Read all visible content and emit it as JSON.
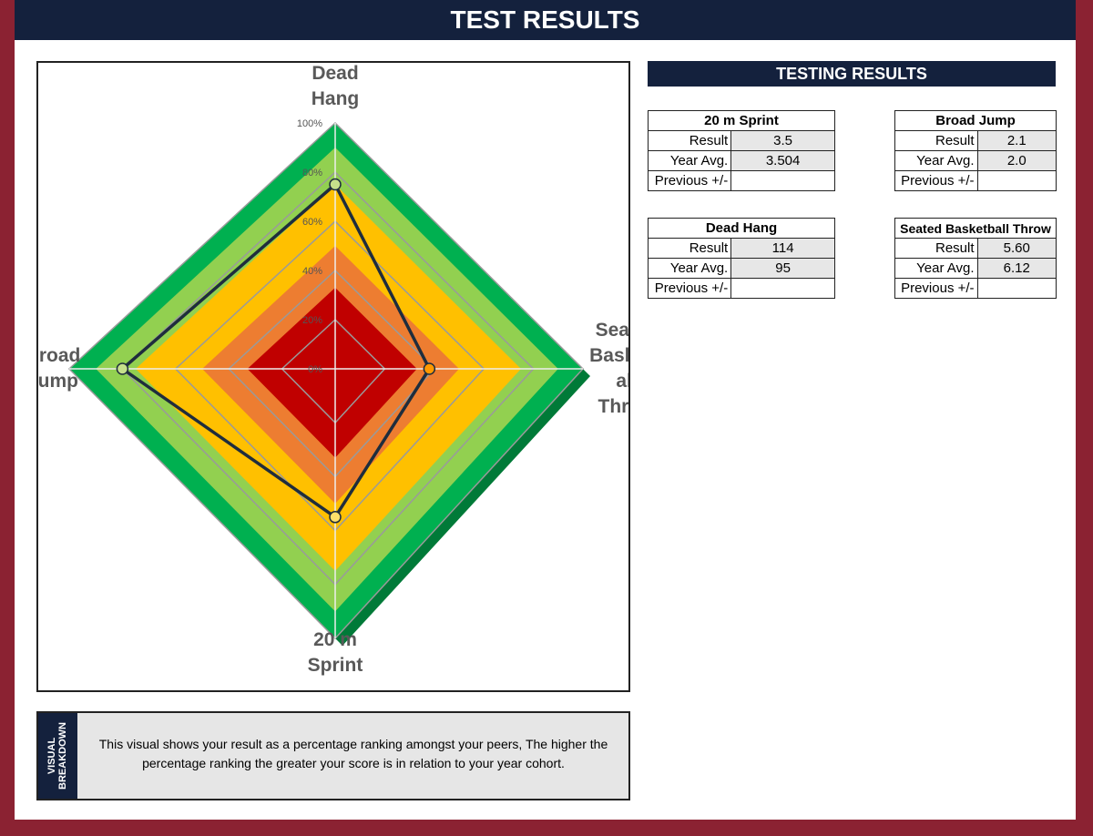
{
  "header": {
    "title": "TEST RESULTS"
  },
  "results_panel": {
    "title": "TESTING RESULTS",
    "tables": [
      {
        "title": "20 m Sprint",
        "rows": [
          {
            "label": "Result",
            "value": "3.5"
          },
          {
            "label": "Year Avg.",
            "value": "3.504"
          },
          {
            "label": "Previous +/-",
            "value": ""
          }
        ]
      },
      {
        "title": "Broad Jump",
        "rows": [
          {
            "label": "Result",
            "value": "2.1"
          },
          {
            "label": "Year Avg.",
            "value": "2.0"
          },
          {
            "label": "Previous +/-",
            "value": ""
          }
        ]
      },
      {
        "title": "Dead Hang",
        "rows": [
          {
            "label": "Result",
            "value": "114"
          },
          {
            "label": "Year Avg.",
            "value": "95"
          },
          {
            "label": "Previous +/-",
            "value": ""
          }
        ]
      },
      {
        "title": "Seated Basketball Throw",
        "rows": [
          {
            "label": "Result",
            "value": "5.60"
          },
          {
            "label": "Year Avg.",
            "value": "6.12"
          },
          {
            "label": "Previous +/-",
            "value": ""
          }
        ]
      }
    ]
  },
  "breakdown": {
    "side_label_line1": "VISUAL",
    "side_label_line2": "BREAKDOWN",
    "text": "This visual shows your result as a percentage ranking amongst your peers, The higher the percentage ranking the greater your score is in relation to your year cohort."
  },
  "chart_data": {
    "type": "radar",
    "categories": [
      "Dead Hang",
      "Seated Basketball Throw",
      "20 m Sprint",
      "Broad Jump"
    ],
    "category_label_lines": [
      [
        "Dead",
        "Hang"
      ],
      [
        "Seated",
        "Basketb",
        "all",
        "Throw"
      ],
      [
        "20 m",
        "Sprint"
      ],
      [
        "Broad",
        "Jump"
      ]
    ],
    "rlim": [
      0,
      100
    ],
    "tick_values": [
      0,
      20,
      40,
      60,
      80,
      100
    ],
    "tick_labels": [
      "0%",
      "20%",
      "40%",
      "60%",
      "80%",
      "100%"
    ],
    "bands": [
      {
        "from": 0,
        "to": 33,
        "color": "#c00000"
      },
      {
        "from": 33,
        "to": 50,
        "color": "#ed7d31"
      },
      {
        "from": 50,
        "to": 75,
        "color": "#ffc000"
      },
      {
        "from": 75,
        "to": 90,
        "color": "#92d050"
      },
      {
        "from": 90,
        "to": 100,
        "color": "#00b050"
      }
    ],
    "series": [
      {
        "values": [
          75,
          38,
          55,
          80
        ],
        "line_color": "#1f2d3d",
        "marker_colors": [
          "#c6e08b",
          "#ff9900",
          "#ffe06b",
          "#c6e08b"
        ]
      }
    ],
    "grid": true,
    "legend": "none"
  }
}
